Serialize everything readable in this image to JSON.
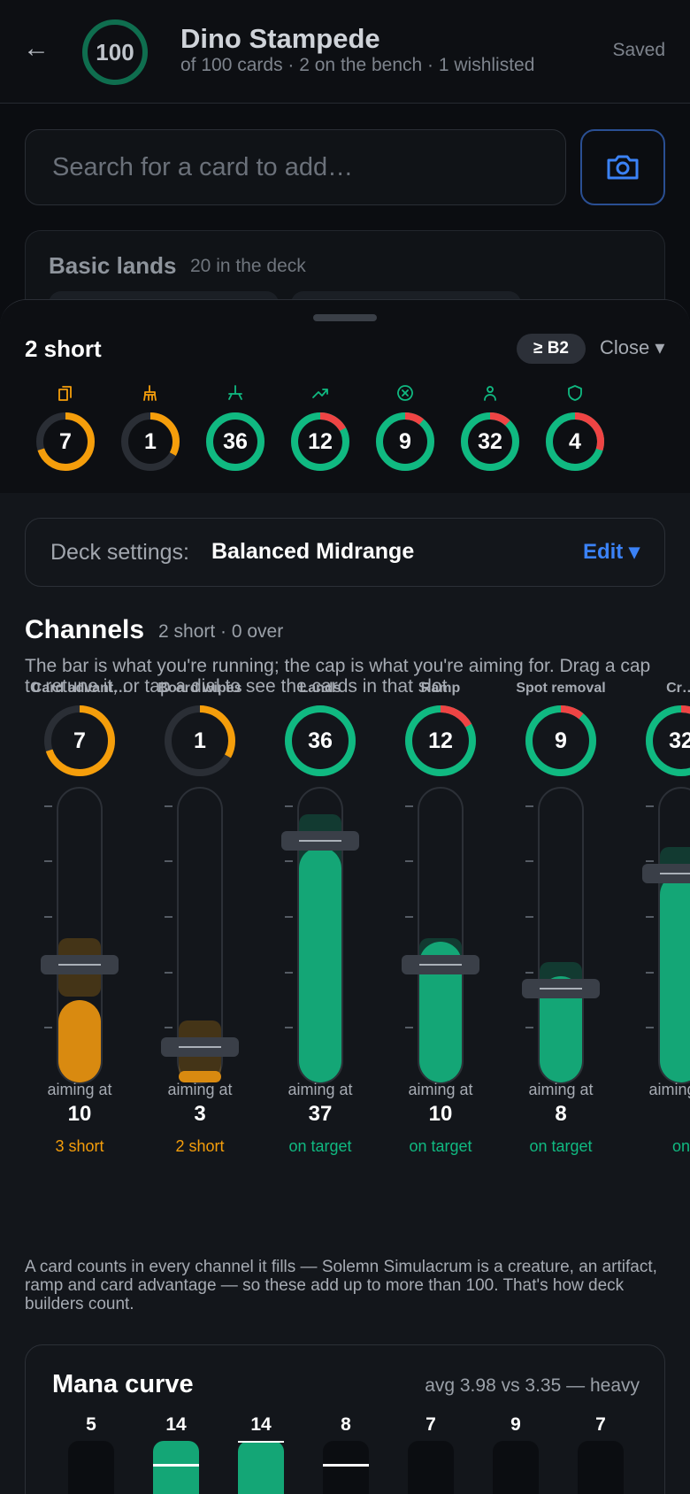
{
  "header": {
    "back_icon": "arrow-left-icon",
    "card_count": "100",
    "deck_name": "Dino Stampede",
    "subtitle": "of 100 cards · 2 on the bench · 1 wishlisted",
    "status": "Saved"
  },
  "search": {
    "placeholder": "Search for a card to add…",
    "camera_icon": "camera-icon"
  },
  "basic_lands": {
    "title": "Basic lands",
    "subtitle": "20 in the deck"
  },
  "sheet": {
    "title": "2 short",
    "bracket_badge": "≥ B2",
    "close_label": "Close ▾",
    "dials": [
      {
        "icon": "cards-icon",
        "value": "7",
        "color": "#f59e0b",
        "fill": 0.7,
        "red": 0
      },
      {
        "icon": "broom-icon",
        "value": "1",
        "color": "#f59e0b",
        "fill": 0.33,
        "red": 0
      },
      {
        "icon": "land-icon",
        "value": "36",
        "color": "#10b981",
        "fill": 1,
        "red": 0
      },
      {
        "icon": "trend-up-icon",
        "value": "12",
        "color": "#10b981",
        "fill": 1,
        "red": 0.17
      },
      {
        "icon": "x-circle-icon",
        "value": "9",
        "color": "#10b981",
        "fill": 1,
        "red": 0.11
      },
      {
        "icon": "person-icon",
        "value": "32",
        "color": "#10b981",
        "fill": 1,
        "red": 0.12
      },
      {
        "icon": "shield-icon",
        "value": "4",
        "color": "#10b981",
        "fill": 1,
        "red": 0.3
      }
    ]
  },
  "settings": {
    "label": "Deck settings:",
    "value": "Balanced Midrange",
    "edit_label": "Edit ▾"
  },
  "channels": {
    "title": "Channels",
    "subtitle": "2 short · 0 over",
    "description": "The bar is what you're running; the cap is what you're aiming for. Drag a cap to retune it, or tap a dial to see the cards in that slot.",
    "aiming_label": "aiming at",
    "items": [
      {
        "name": "Card advant…",
        "value": "7",
        "target": "10",
        "status": "3 short",
        "status_color": "#f59e0b",
        "color": "#f59e0b",
        "fill": 0.7,
        "red": 0,
        "running": 7,
        "max": 25
      },
      {
        "name": "Board wipes",
        "value": "1",
        "target": "3",
        "status": "2 short",
        "status_color": "#f59e0b",
        "color": "#f59e0b",
        "fill": 0.33,
        "red": 0,
        "running": 1,
        "max": 25
      },
      {
        "name": "Lands",
        "value": "36",
        "target": "37",
        "status": "on target",
        "status_color": "#10b981",
        "color": "#10b981",
        "fill": 1,
        "red": 0,
        "running": 36,
        "max": 45
      },
      {
        "name": "Ramp",
        "value": "12",
        "target": "10",
        "status": "on target",
        "status_color": "#10b981",
        "color": "#10b981",
        "fill": 1,
        "red": 0.17,
        "running": 12,
        "max": 25
      },
      {
        "name": "Spot removal",
        "value": "9",
        "target": "8",
        "status": "on target",
        "status_color": "#10b981",
        "color": "#10b981",
        "fill": 1,
        "red": 0.11,
        "running": 9,
        "max": 25
      },
      {
        "name": "Cr…",
        "value": "32",
        "target": "",
        "status": "on",
        "status_color": "#10b981",
        "color": "#10b981",
        "fill": 1,
        "red": 0.12,
        "running": 32,
        "max": 45
      }
    ]
  },
  "note": "A card counts in every channel it fills — Solemn Simulacrum is a creature, an artifact, ramp and card advantage — so these add up to more than 100. That's how deck builders count.",
  "mana_curve": {
    "title": "Mana curve",
    "summary": "avg 3.98 vs 3.35 — heavy",
    "counts": [
      "5",
      "14",
      "14",
      "8",
      "7",
      "9",
      "7"
    ]
  }
}
